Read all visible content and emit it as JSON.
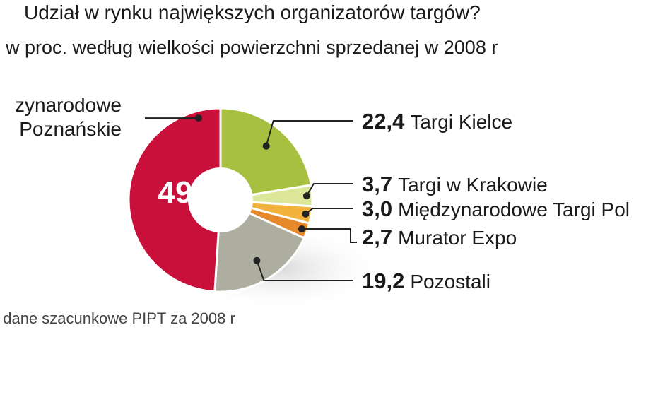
{
  "header": {
    "title": "Udział w rynku największych organizatorów targów?",
    "subtitle": "w proc. według wielkości powierzchni sprzedanej w 2008 r"
  },
  "footer": {
    "source": ": dane szacunkowe PIPT za 2008 r"
  },
  "chart_data": {
    "type": "pie",
    "title": "Udział w rynku największych organizatorów targów?",
    "subtitle": "w proc. według wielkości powierzchni sprzedanej w 2008 r",
    "categories": [
      "zynarodowe Poznańskie",
      "Targi Kielce",
      "Targi w Krakowie",
      "Międzynarodowe Targi Pol",
      "Murator Expo",
      "Pozostali"
    ],
    "values": [
      49,
      22.4,
      3.7,
      3.0,
      2.7,
      19.2
    ],
    "value_labels": [
      "49",
      "22,4",
      "3,7",
      "3,0",
      "2,7",
      "19,2"
    ],
    "left_label_lines": [
      "zynarodowe",
      "Poznańskie"
    ],
    "colors": [
      "#c8103a",
      "#a8c040",
      "#dde79a",
      "#f3b23c",
      "#e5892a",
      "#adada0"
    ],
    "donut": true
  }
}
